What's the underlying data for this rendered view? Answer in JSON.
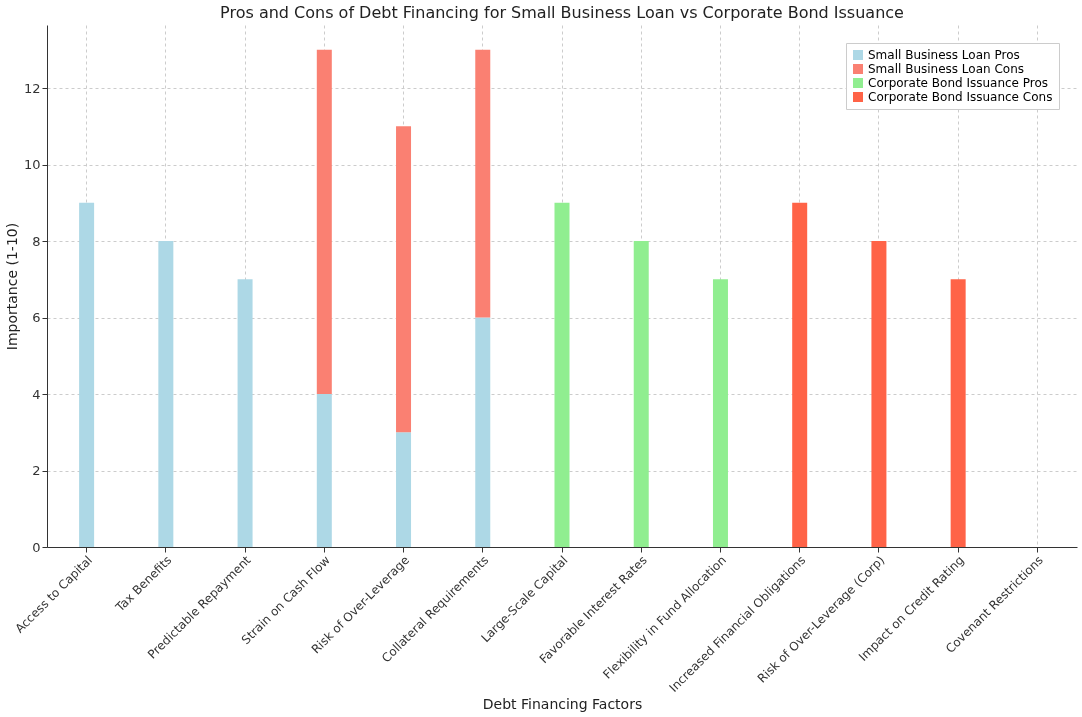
{
  "chart_data": {
    "type": "bar",
    "title": "Pros and Cons of Debt Financing for Small Business Loan vs Corporate Bond Issuance",
    "xlabel": "Debt Financing Factors",
    "ylabel": "Importance (1-10)",
    "categories": [
      "Access to Capital",
      "Tax Benefits",
      "Predictable Repayment",
      "Strain on Cash Flow",
      "Risk of Over-Leverage",
      "Collateral Requirements",
      "Large-Scale Capital",
      "Favorable Interest Rates",
      "Flexibility in Fund Allocation",
      "Increased Financial Obligations",
      "Risk of Over-Leverage (Corp)",
      "Impact on Credit Rating",
      "Covenant Restrictions"
    ],
    "stacked": true,
    "series": [
      {
        "name": "Small Business Loan Pros",
        "color": "#add8e6",
        "values": [
          9,
          8,
          7,
          4,
          3,
          6,
          null,
          null,
          null,
          null,
          null,
          null,
          null
        ]
      },
      {
        "name": "Small Business Loan Cons",
        "color": "#fa8072",
        "values": [
          null,
          null,
          null,
          9,
          8,
          7,
          null,
          null,
          null,
          null,
          null,
          null,
          null
        ]
      },
      {
        "name": "Corporate Bond Issuance Pros",
        "color": "#90ee90",
        "values": [
          null,
          null,
          null,
          null,
          null,
          null,
          9,
          8,
          7,
          null,
          null,
          null,
          null
        ]
      },
      {
        "name": "Corporate Bond Issuance Cons",
        "color": "#ff6347",
        "values": [
          null,
          null,
          null,
          null,
          null,
          null,
          null,
          null,
          null,
          9,
          8,
          7,
          null
        ]
      }
    ],
    "ylim": [
      0,
      13.65
    ],
    "yticks": [
      0,
      2,
      4,
      6,
      8,
      10,
      12
    ],
    "grid": true,
    "legend": "top right"
  }
}
